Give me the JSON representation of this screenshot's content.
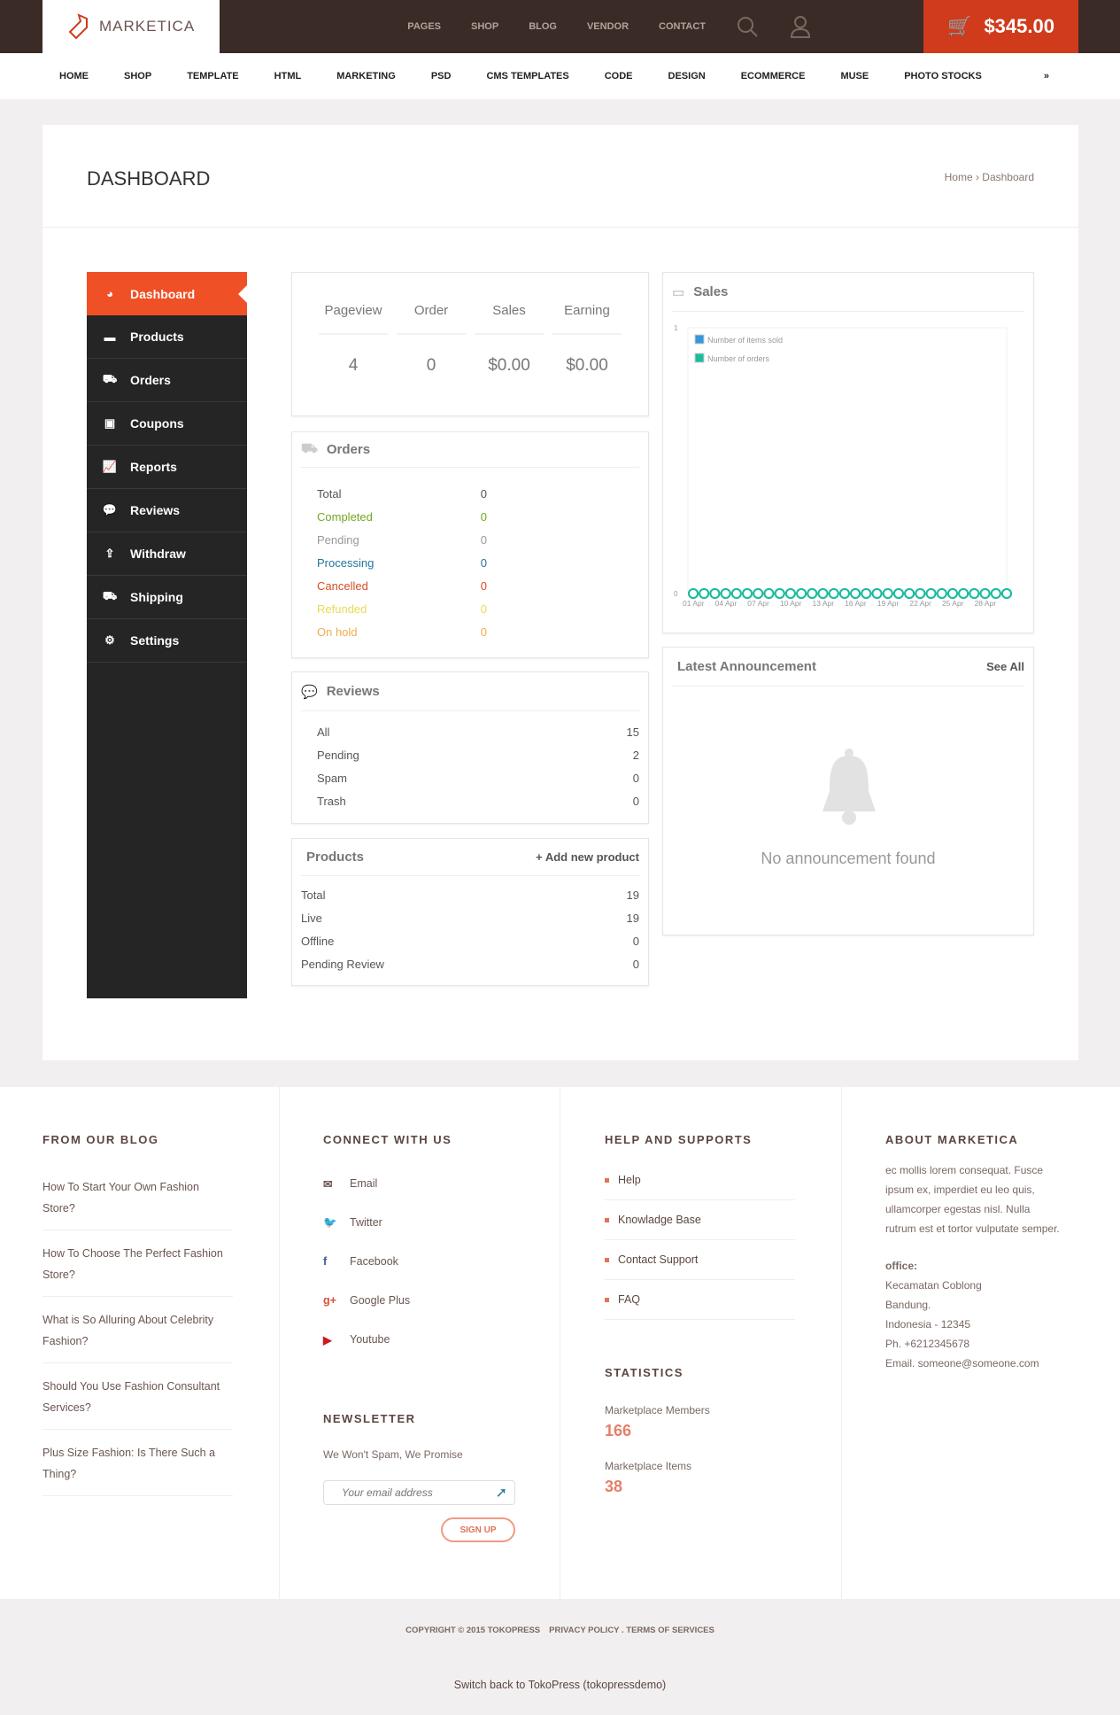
{
  "header": {
    "logo": "MARKETICA",
    "links": [
      "PAGES",
      "SHOP",
      "BLOG",
      "VENDOR",
      "CONTACT"
    ],
    "cart_total": "$345.00"
  },
  "nav": [
    "HOME",
    "SHOP",
    "TEMPLATE",
    "HTML",
    "MARKETING",
    "PSD",
    "CMS TEMPLATES",
    "CODE",
    "DESIGN",
    "ECOMMERCE",
    "MUSE",
    "PHOTO STOCKS"
  ],
  "page": {
    "title": "DASHBOARD",
    "breadcrumb": "Home › Dashboard"
  },
  "sidebar": [
    {
      "label": "Dashboard",
      "icon": "dashboard-icon"
    },
    {
      "label": "Products",
      "icon": "briefcase-icon"
    },
    {
      "label": "Orders",
      "icon": "cart-icon"
    },
    {
      "label": "Coupons",
      "icon": "gift-icon"
    },
    {
      "label": "Reports",
      "icon": "chart-icon"
    },
    {
      "label": "Reviews",
      "icon": "comments-icon"
    },
    {
      "label": "Withdraw",
      "icon": "upload-icon"
    },
    {
      "label": "Shipping",
      "icon": "truck-icon"
    },
    {
      "label": "Settings",
      "icon": "gear-icon"
    }
  ],
  "stats": [
    {
      "label": "Pageview",
      "value": "4"
    },
    {
      "label": "Order",
      "value": "0"
    },
    {
      "label": "Sales",
      "value": "$0.00"
    },
    {
      "label": "Earning",
      "value": "$0.00"
    }
  ],
  "orders": {
    "title": "Orders",
    "rows": [
      {
        "label": "Total",
        "value": "0",
        "color": "#555555"
      },
      {
        "label": "Completed",
        "value": "0",
        "color": "#73a724"
      },
      {
        "label": "Pending",
        "value": "0",
        "color": "#999999"
      },
      {
        "label": "Processing",
        "value": "0",
        "color": "#21759b"
      },
      {
        "label": "Cancelled",
        "value": "0",
        "color": "#d54e21"
      },
      {
        "label": "Refunded",
        "value": "0",
        "color": "#e6db55"
      },
      {
        "label": "On hold",
        "value": "0",
        "color": "#f0ad4e"
      }
    ]
  },
  "reviews": {
    "title": "Reviews",
    "rows": [
      {
        "label": "All",
        "value": "15"
      },
      {
        "label": "Pending",
        "value": "2"
      },
      {
        "label": "Spam",
        "value": "0"
      },
      {
        "label": "Trash",
        "value": "0"
      }
    ]
  },
  "products": {
    "title": "Products",
    "add": "+ Add new product",
    "rows": [
      {
        "label": "Total",
        "value": "19"
      },
      {
        "label": "Live",
        "value": "19"
      },
      {
        "label": "Offline",
        "value": "0"
      },
      {
        "label": "Pending Review",
        "value": "0"
      }
    ]
  },
  "sales": {
    "title": "Sales"
  },
  "chart_data": {
    "type": "line",
    "x": [
      "01 Apr",
      "02 Apr",
      "03 Apr",
      "04 Apr",
      "05 Apr",
      "06 Apr",
      "07 Apr",
      "08 Apr",
      "09 Apr",
      "10 Apr",
      "11 Apr",
      "12 Apr",
      "13 Apr",
      "14 Apr",
      "15 Apr",
      "16 Apr",
      "17 Apr",
      "18 Apr",
      "19 Apr",
      "20 Apr",
      "21 Apr",
      "22 Apr",
      "23 Apr",
      "24 Apr",
      "25 Apr",
      "26 Apr",
      "27 Apr",
      "28 Apr",
      "29 Apr",
      "30 Apr"
    ],
    "xticks": [
      "01 Apr",
      "04 Apr",
      "07 Apr",
      "10 Apr",
      "13 Apr",
      "16 Apr",
      "19 Apr",
      "22 Apr",
      "25 Apr",
      "28 Apr"
    ],
    "yticks": [
      "0",
      "1"
    ],
    "ylim": [
      0,
      1
    ],
    "legend": "top-left",
    "series": [
      {
        "name": "Number of items sold",
        "color": "#3498db",
        "values": [
          0,
          0,
          0,
          0,
          0,
          0,
          0,
          0,
          0,
          0,
          0,
          0,
          0,
          0,
          0,
          0,
          0,
          0,
          0,
          0,
          0,
          0,
          0,
          0,
          0,
          0,
          0,
          0,
          0,
          0
        ]
      },
      {
        "name": "Number of orders",
        "color": "#1abc9c",
        "values": [
          0,
          0,
          0,
          0,
          0,
          0,
          0,
          0,
          0,
          0,
          0,
          0,
          0,
          0,
          0,
          0,
          0,
          0,
          0,
          0,
          0,
          0,
          0,
          0,
          0,
          0,
          0,
          0,
          0,
          0
        ]
      }
    ]
  },
  "announcement": {
    "title": "Latest Announcement",
    "see_all": "See All",
    "empty": "No announcement found"
  },
  "footer": {
    "blog": {
      "title": "FROM OUR BLOG",
      "items": [
        "How To Start Your Own Fashion Store?",
        "How To Choose The Perfect Fashion Store?",
        "What is So Alluring About Celebrity Fashion?",
        "Should You Use Fashion Consultant Services?",
        "Plus Size Fashion: Is There Such a Thing?"
      ]
    },
    "connect": {
      "title": "CONNECT WITH US",
      "items": [
        {
          "label": "Email",
          "icon": "email-icon"
        },
        {
          "label": "Twitter",
          "icon": "twitter-icon"
        },
        {
          "label": "Facebook",
          "icon": "facebook-icon"
        },
        {
          "label": "Google Plus",
          "icon": "google-plus-icon"
        },
        {
          "label": "Youtube",
          "icon": "youtube-icon"
        }
      ]
    },
    "newsletter": {
      "title": "NEWSLETTER",
      "text": "We Won't Spam, We Promise",
      "placeholder": "Your email address",
      "button": "SIGN UP"
    },
    "help": {
      "title": "HELP AND SUPPORTS",
      "items": [
        "Help",
        "Knowladge Base",
        "Contact Support",
        "FAQ"
      ]
    },
    "statistics": {
      "title": "STATISTICS",
      "members_label": "Marketplace Members",
      "members": "166",
      "items_label": "Marketplace Items",
      "items": "38"
    },
    "about": {
      "title": "ABOUT MARKETICA",
      "text": "ec mollis lorem consequat. Fusce ipsum ex, imperdiet eu leo quis, ullamcorper egestas nisl. Nulla rutrum est et tortor vulputate semper.",
      "office_label": "office:",
      "lines": [
        "Kecamatan Coblong",
        "Bandung.",
        "Indonesia - 12345",
        "Ph. +6212345678",
        "Email. someone@someone.com"
      ]
    },
    "copyright": "COPYRIGHT © 2015 TOKOPRESS",
    "policy": "PRIVACY POLICY . TERMS OF SERVICES",
    "switch_back": "Switch back to TokoPress (tokopressdemo)"
  }
}
